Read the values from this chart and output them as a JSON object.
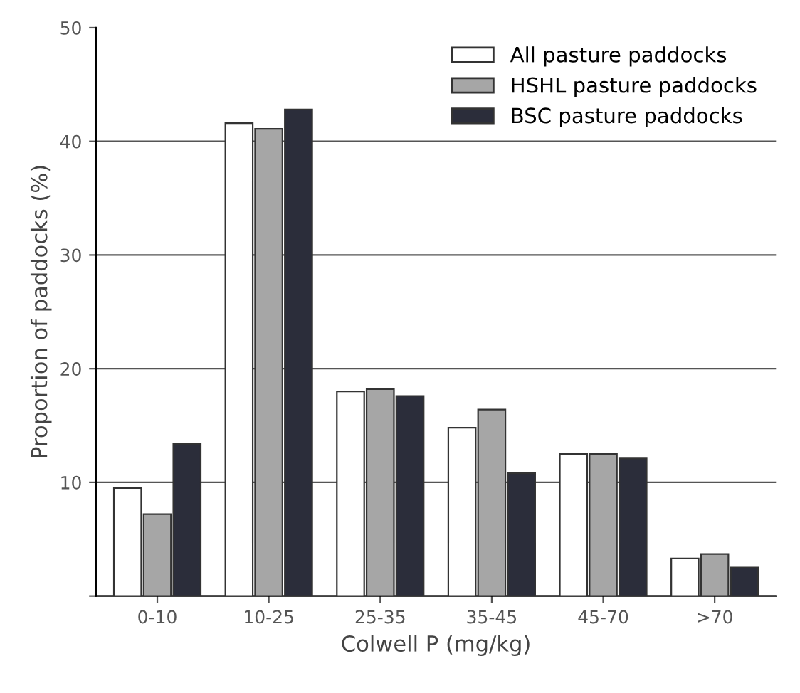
{
  "chart_data": {
    "type": "bar",
    "xlabel": "Colwell P (mg/kg)",
    "ylabel": "Proportion of paddocks (%)",
    "categories": [
      "0-10",
      "10-25",
      "25-35",
      "35-45",
      "45-70",
      ">70"
    ],
    "series": [
      {
        "name": "All pasture paddocks",
        "color": "#ffffff",
        "values": [
          9.5,
          41.6,
          18.0,
          14.8,
          12.5,
          3.3
        ]
      },
      {
        "name": "HSHL pasture paddocks",
        "color": "#a6a6a6",
        "values": [
          7.2,
          41.1,
          18.2,
          16.4,
          12.5,
          3.7
        ]
      },
      {
        "name": "BSC pasture paddocks",
        "color": "#2b2d3a",
        "values": [
          13.4,
          42.8,
          17.6,
          10.8,
          12.1,
          2.5
        ]
      }
    ],
    "ylim": [
      0,
      50
    ],
    "yticks": [
      {
        "value": 0,
        "label": null
      },
      10,
      20,
      30,
      40,
      50
    ],
    "grid": "y",
    "legend": "top right"
  }
}
